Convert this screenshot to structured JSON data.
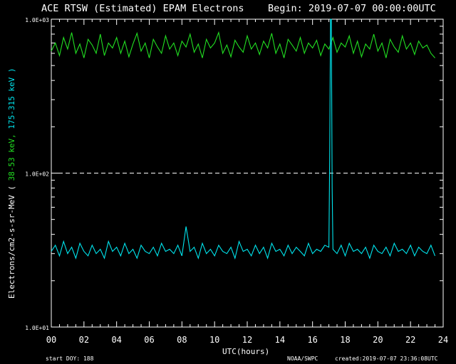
{
  "title": {
    "main": "ACE RTSW (Estimated) EPAM Electrons",
    "begin": "Begin: 2019-07-07 00:00:00UTC"
  },
  "footer": {
    "start_doy": "start DOY:  188",
    "source": "NOAA/SWPC",
    "created": "created:2019-07-07 23:36:08UTC"
  },
  "colors": {
    "low_channel": "#22e022",
    "high_channel": "#00e5ee",
    "axes": "#ffffff",
    "background": "#000000"
  },
  "chart_data": {
    "type": "line",
    "scale": "log",
    "ylim": [
      10,
      1000
    ],
    "xlim": [
      0,
      24
    ],
    "xlabel": "UTC(hours)",
    "ylabel": {
      "prefix": "Electrons/cm2-s-sr-MeV  ( ",
      "low_channel": "38-53 keV,",
      "high_channel": "175-315 keV )"
    },
    "x_ticks": [
      "00",
      "02",
      "04",
      "06",
      "08",
      "10",
      "12",
      "14",
      "16",
      "18",
      "20",
      "22",
      "24"
    ],
    "y_ticks": [
      "1.0E+01",
      "1.0E+02",
      "1.0E+03"
    ],
    "reference_line": {
      "y": 100,
      "style": "dashed"
    },
    "series": [
      {
        "name": "38-53 keV",
        "color": "#22e022",
        "x": [
          0.0,
          0.25,
          0.5,
          0.75,
          1.0,
          1.25,
          1.5,
          1.75,
          2.0,
          2.25,
          2.5,
          2.75,
          3.0,
          3.25,
          3.5,
          3.75,
          4.0,
          4.25,
          4.5,
          4.75,
          5.0,
          5.25,
          5.5,
          5.75,
          6.0,
          6.25,
          6.5,
          6.75,
          7.0,
          7.25,
          7.5,
          7.75,
          8.0,
          8.25,
          8.5,
          8.75,
          9.0,
          9.25,
          9.5,
          9.75,
          10.0,
          10.25,
          10.5,
          10.75,
          11.0,
          11.25,
          11.5,
          11.75,
          12.0,
          12.25,
          12.5,
          12.75,
          13.0,
          13.25,
          13.5,
          13.75,
          14.0,
          14.25,
          14.5,
          14.75,
          15.0,
          15.25,
          15.5,
          15.75,
          16.0,
          16.25,
          16.5,
          16.75,
          17.0,
          17.25,
          17.5,
          17.75,
          18.0,
          18.25,
          18.5,
          18.75,
          19.0,
          19.25,
          19.5,
          19.75,
          20.0,
          20.25,
          20.5,
          20.75,
          21.0,
          21.25,
          21.5,
          21.75,
          22.0,
          22.25,
          22.5,
          22.75,
          23.0,
          23.25,
          23.5
        ],
        "values": [
          620,
          700,
          580,
          760,
          640,
          820,
          600,
          690,
          560,
          740,
          680,
          600,
          800,
          580,
          700,
          650,
          760,
          600,
          720,
          570,
          690,
          810,
          620,
          700,
          560,
          740,
          660,
          600,
          780,
          640,
          700,
          580,
          720,
          660,
          800,
          610,
          690,
          560,
          740,
          650,
          700,
          820,
          600,
          680,
          570,
          730,
          660,
          610,
          780,
          640,
          700,
          590,
          720,
          650,
          810,
          600,
          690,
          560,
          740,
          680,
          620,
          760,
          600,
          700,
          650,
          730,
          580,
          690,
          640,
          760,
          610,
          700,
          660,
          780,
          600,
          720,
          570,
          690,
          640,
          800,
          620,
          700,
          560,
          740,
          660,
          610,
          780,
          640,
          700,
          590,
          720,
          650,
          680,
          600,
          560
        ]
      },
      {
        "name": "175-315 keV",
        "color": "#00e5ee",
        "x": [
          0.0,
          0.25,
          0.5,
          0.75,
          1.0,
          1.25,
          1.5,
          1.75,
          2.0,
          2.25,
          2.5,
          2.75,
          3.0,
          3.25,
          3.5,
          3.75,
          4.0,
          4.25,
          4.5,
          4.75,
          5.0,
          5.25,
          5.5,
          5.75,
          6.0,
          6.25,
          6.5,
          6.75,
          7.0,
          7.25,
          7.5,
          7.75,
          8.0,
          8.25,
          8.5,
          8.75,
          9.0,
          9.25,
          9.5,
          9.75,
          10.0,
          10.25,
          10.5,
          10.75,
          11.0,
          11.25,
          11.5,
          11.75,
          12.0,
          12.25,
          12.5,
          12.75,
          13.0,
          13.25,
          13.5,
          13.75,
          14.0,
          14.25,
          14.5,
          14.75,
          15.0,
          15.25,
          15.5,
          15.75,
          16.0,
          16.25,
          16.5,
          16.75,
          17.0,
          17.05,
          17.1,
          17.15,
          17.2,
          17.25,
          17.5,
          17.75,
          18.0,
          18.25,
          18.5,
          18.75,
          19.0,
          19.25,
          19.5,
          19.75,
          20.0,
          20.25,
          20.5,
          20.75,
          21.0,
          21.25,
          21.5,
          21.75,
          22.0,
          22.25,
          22.5,
          22.75,
          23.0,
          23.25,
          23.5
        ],
        "values": [
          31,
          34,
          29,
          36,
          30,
          33,
          28,
          35,
          31,
          29,
          34,
          30,
          32,
          28,
          36,
          31,
          33,
          29,
          35,
          30,
          32,
          28,
          34,
          31,
          30,
          33,
          29,
          35,
          31,
          32,
          30,
          34,
          29,
          45,
          31,
          33,
          28,
          35,
          30,
          32,
          29,
          34,
          31,
          30,
          33,
          28,
          36,
          31,
          32,
          29,
          34,
          30,
          33,
          28,
          35,
          31,
          32,
          29,
          34,
          30,
          33,
          31,
          29,
          35,
          30,
          32,
          31,
          34,
          33,
          120,
          1000,
          1000,
          80,
          32,
          30,
          34,
          29,
          35,
          31,
          32,
          30,
          33,
          28,
          34,
          31,
          30,
          33,
          29,
          35,
          31,
          32,
          30,
          34,
          29,
          33,
          31,
          30,
          34,
          29
        ]
      }
    ]
  }
}
